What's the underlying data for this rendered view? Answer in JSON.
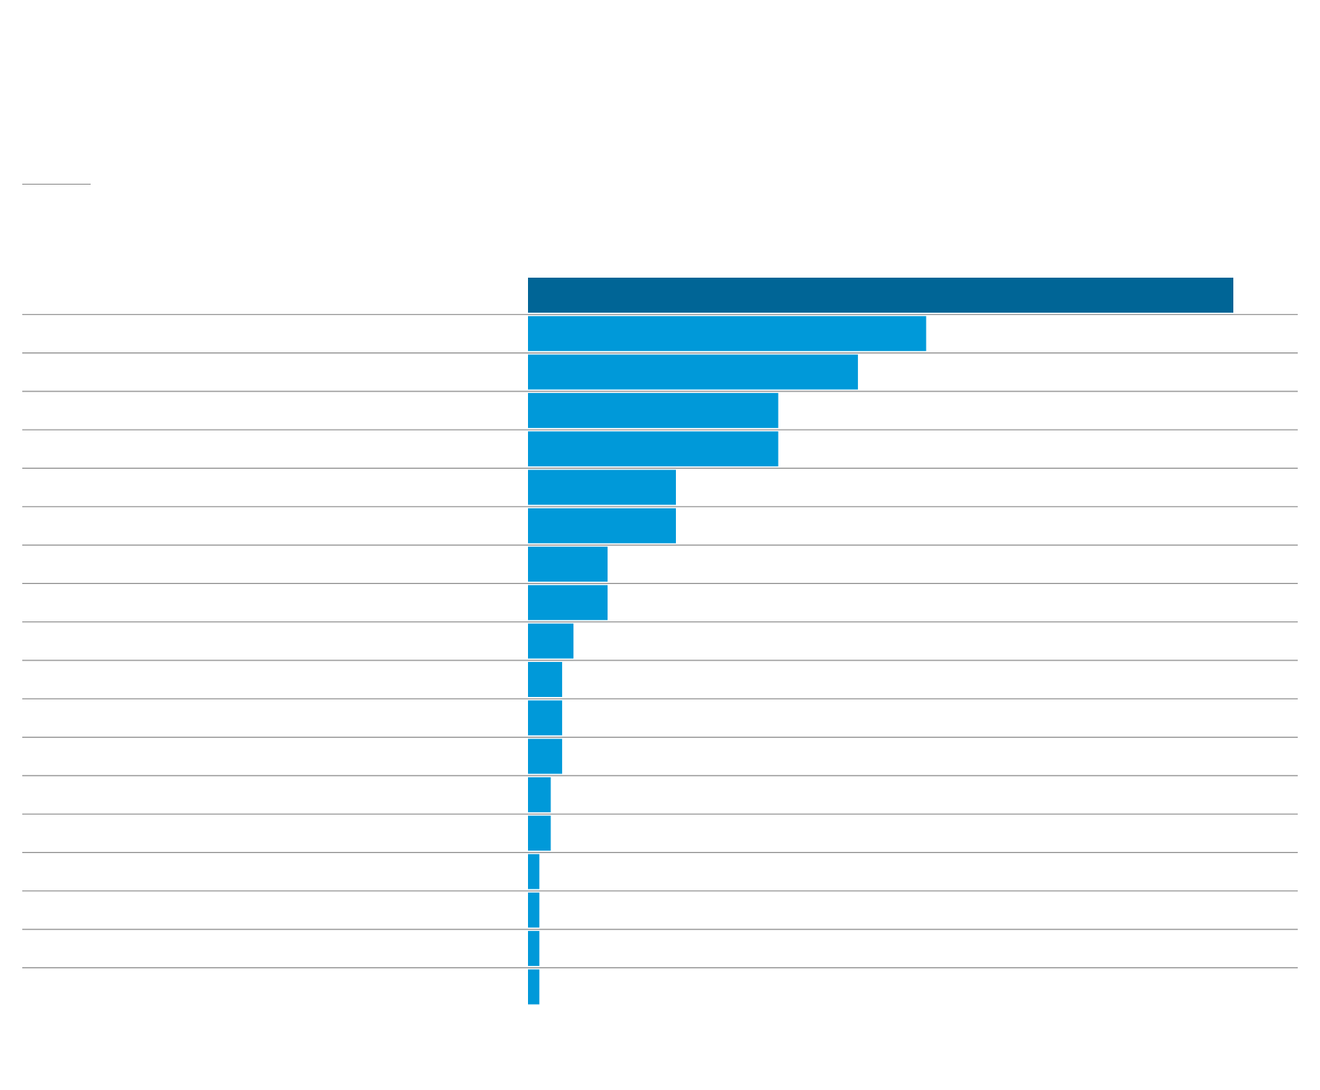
{
  "colors": {
    "highlight": "#006596",
    "bar": "#0099d9",
    "rule": "#8a8a8a",
    "background": "#ffffff"
  },
  "chart_data": {
    "type": "bar",
    "orientation": "horizontal",
    "categories": [
      "",
      "",
      "",
      "",
      "",
      "",
      "",
      "",
      "",
      "",
      "",
      "",
      "",
      "",
      "",
      "",
      "",
      "",
      ""
    ],
    "values": [
      62,
      35,
      29,
      22,
      22,
      13,
      13,
      7,
      7,
      4,
      3,
      3,
      3,
      2,
      2,
      1,
      1,
      1,
      1
    ],
    "highlight_index": 0,
    "xlim": [
      0,
      62
    ],
    "grid": false,
    "legend": "none",
    "title": "",
    "xlabel": "",
    "ylabel": ""
  }
}
